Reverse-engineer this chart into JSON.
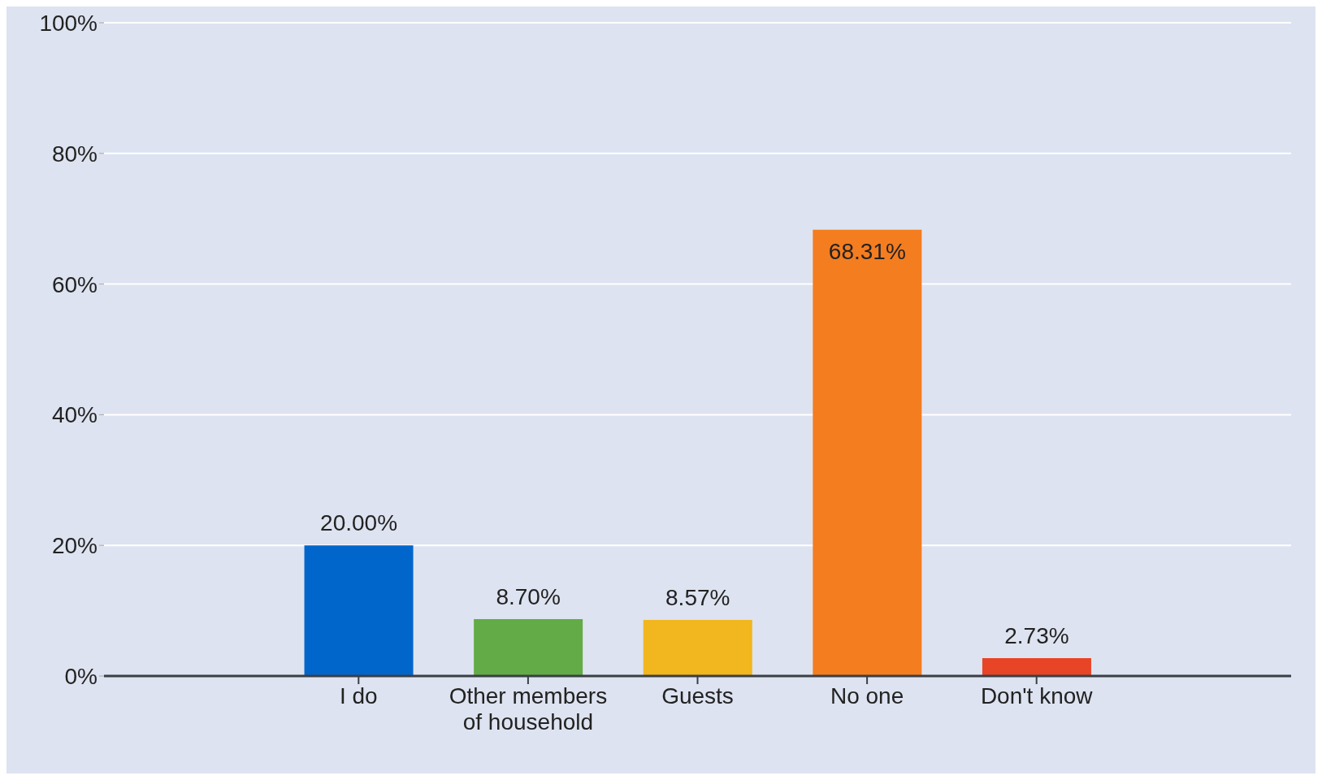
{
  "chart_data": {
    "type": "bar",
    "categories": [
      "I do",
      "Other members of household",
      "Guests",
      "No one",
      "Don't know"
    ],
    "values": [
      20.0,
      8.7,
      8.57,
      68.31,
      2.73
    ],
    "colors": [
      "#0066cc",
      "#62ab46",
      "#f2b61e",
      "#f47d20",
      "#e84426"
    ],
    "value_labels": [
      "20.00%",
      "8.70%",
      "8.57%",
      "68.31%",
      "2.73%"
    ],
    "ylim": [
      0,
      100
    ],
    "yticks": [
      {
        "value": 0,
        "label": "0%"
      },
      {
        "value": 20,
        "label": "20%"
      },
      {
        "value": 40,
        "label": "40%"
      },
      {
        "value": 60,
        "label": "60%"
      },
      {
        "value": 80,
        "label": "80%"
      },
      {
        "value": 100,
        "label": "100%"
      }
    ],
    "grid": "y"
  }
}
